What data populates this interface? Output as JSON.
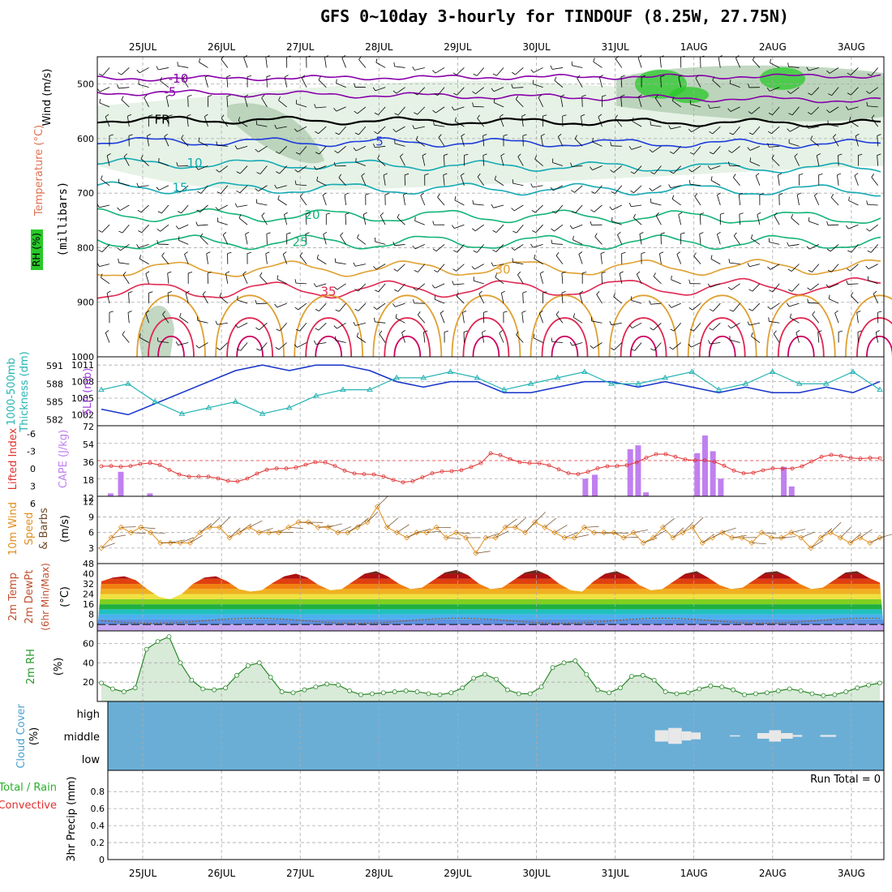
{
  "title": "GFS 0~10day 3-hourly for TINDOUF (8.25W, 27.75N)",
  "colors": {
    "frame": "#000000",
    "grid": "#aaaaaa",
    "temp_cold": "#8800aa",
    "temp_freezing": "#000000",
    "temp_blue": "#1e3cdc",
    "temp_cyan": "#14aab4",
    "temp_green": "#14b478",
    "temp_orange": "#e0a030",
    "temp_hot": "#e02850",
    "rh_light": "#e6f2e6",
    "rh_mid": "#a8c8a8",
    "rh_high": "#28c828",
    "slp": "#1432c8",
    "thickness": "#28b4b4",
    "cape": "#c080f0",
    "lifted_index": "#e03030",
    "wind_speed": "#e09020",
    "wind_barb": "#6b4a2a",
    "rh2m": "#2a8a2a",
    "cloud_bg": "#6aaed6",
    "cloud_fill": "#e8e8e8"
  },
  "dates": [
    "25JUL",
    "26JUL",
    "27JUL",
    "28JUL",
    "29JUL",
    "30JUL",
    "31JUL",
    "1AUG",
    "2AUG",
    "3AUG"
  ],
  "panels": {
    "upper": {
      "label_wind": "Wind (m/s)",
      "label_temp": "Temperature (°C)",
      "label_rh": "RH (%)",
      "label_pressure": "(millibars)",
      "levels": [
        "500",
        "600",
        "700",
        "800",
        "900",
        "1000"
      ],
      "isotherm_labels": [
        "-10",
        "-5",
        "FR",
        "5",
        "10",
        "15",
        "20",
        "25",
        "30",
        "35"
      ]
    },
    "slp": {
      "label_thk": "1000-500mb",
      "label_thk2": "Thickness (dm)",
      "label_slp": "SLP (mb)",
      "thk_ticks": [
        "591",
        "588",
        "585",
        "582"
      ],
      "slp_ticks": [
        "1011",
        "1008",
        "1005",
        "1002"
      ]
    },
    "cape": {
      "label_li": "Lifted Index",
      "label_cape": "CAPE (J/kg)",
      "li_ticks": [
        "-6",
        "-3",
        "0",
        "3",
        "6"
      ],
      "cape_ticks": [
        "72",
        "54",
        "36",
        "18",
        "12"
      ]
    },
    "wind10": {
      "label1": "10m Wind",
      "label2": "Speed",
      "label3": "& Barbs",
      "unit": "(m/s)",
      "ticks": [
        "12",
        "9",
        "6",
        "3"
      ]
    },
    "temp2m": {
      "label1": "2m Temp",
      "label2": "2m DewPt",
      "label3": "(6hr Min/Max)",
      "unit": "(°C)",
      "ticks": [
        "48",
        "40",
        "32",
        "24",
        "16",
        "8",
        "0"
      ]
    },
    "rh2m": {
      "label": "2m RH",
      "unit": "(%)",
      "ticks": [
        "60",
        "40",
        "20"
      ]
    },
    "cloud": {
      "label": "Cloud Cover",
      "unit": "(%)",
      "levels": [
        "high",
        "middle",
        "low"
      ]
    },
    "precip": {
      "label1": "Total / Rain",
      "label2": "Convective",
      "label3": "3hr Precip (mm)",
      "ticks": [
        "0.8",
        "0.6",
        "0.4",
        "0.2",
        "0"
      ],
      "run_total": "Run Total = 0"
    }
  },
  "chart_data": [
    {
      "type": "line",
      "name": "upper",
      "ylabel": "(millibars)",
      "ylim": [
        1000,
        450
      ],
      "isotherms": [
        {
          "label": "-10",
          "p_start": 490,
          "p_end": 485
        },
        {
          "label": "-5",
          "p_start": 515,
          "p_end": 530
        },
        {
          "label": "FR",
          "p_start": 565,
          "p_end": 572
        },
        {
          "label": "5",
          "p_start": 605,
          "p_end": 610
        },
        {
          "label": "10",
          "p_start": 645,
          "p_end": 655
        },
        {
          "label": "15",
          "p_start": 690,
          "p_end": 695
        },
        {
          "label": "20",
          "p_start": 740,
          "p_end": 745
        },
        {
          "label": "25",
          "p_start": 790,
          "p_end": 790
        },
        {
          "label": "30",
          "p_start": 840,
          "p_end": 835
        },
        {
          "label": "35",
          "p_start": 880,
          "p_end": 870
        }
      ]
    },
    {
      "type": "line",
      "name": "slp_thickness",
      "series": [
        {
          "name": "SLP (mb)",
          "values": [
            1003,
            1002,
            1004,
            1006,
            1008,
            1010,
            1011,
            1010,
            1011,
            1011,
            1010,
            1008,
            1007,
            1008,
            1008,
            1006,
            1006,
            1007,
            1008,
            1008,
            1007,
            1008,
            1007,
            1006,
            1007,
            1006,
            1006,
            1007,
            1006,
            1008
          ]
        },
        {
          "name": "1000-500mb Thickness (dm)",
          "values": [
            587,
            588,
            585,
            583,
            584,
            585,
            583,
            584,
            586,
            587,
            587,
            589,
            589,
            590,
            589,
            587,
            588,
            589,
            590,
            588,
            588,
            589,
            590,
            587,
            588,
            590,
            588,
            588,
            590,
            587
          ]
        }
      ]
    },
    {
      "type": "bar",
      "name": "cape_li",
      "cape_bars": [
        {
          "x": 0.05,
          "v": 3
        },
        {
          "x": 0.18,
          "v": 25
        },
        {
          "x": 0.55,
          "v": 3
        },
        {
          "x": 6.08,
          "v": 18
        },
        {
          "x": 6.2,
          "v": 22
        },
        {
          "x": 6.65,
          "v": 48
        },
        {
          "x": 6.75,
          "v": 52
        },
        {
          "x": 6.85,
          "v": 4
        },
        {
          "x": 7.5,
          "v": 44
        },
        {
          "x": 7.6,
          "v": 62
        },
        {
          "x": 7.7,
          "v": 46
        },
        {
          "x": 7.8,
          "v": 18
        },
        {
          "x": 8.6,
          "v": 30
        },
        {
          "x": 8.7,
          "v": 10
        }
      ]
    },
    {
      "type": "line",
      "name": "wind10m",
      "series": [
        {
          "name": "Speed",
          "values": [
            3,
            5,
            7,
            6,
            7,
            6,
            4,
            4,
            4,
            4,
            6,
            7,
            7,
            5,
            6,
            7,
            6,
            6,
            6,
            7,
            8,
            8,
            7,
            7,
            6,
            6,
            7,
            8,
            11,
            7,
            6,
            5,
            6,
            6,
            7,
            5,
            6,
            5,
            2,
            5,
            5,
            7,
            7,
            6,
            8,
            7,
            6,
            5,
            5,
            7,
            6,
            6,
            6,
            5,
            6,
            4,
            5,
            7,
            5,
            6,
            7,
            4,
            5,
            6,
            5,
            5,
            4,
            6,
            5,
            5,
            6,
            5,
            3,
            5,
            6,
            5,
            4,
            5,
            4,
            5
          ]
        }
      ]
    },
    {
      "type": "area",
      "name": "temp2m",
      "ylim": [
        0,
        48
      ],
      "series": [
        {
          "name": "Temp",
          "values": [
            34,
            37,
            38,
            35,
            28,
            22,
            20,
            24,
            32,
            37,
            38,
            34,
            28,
            26,
            27,
            33,
            38,
            40,
            37,
            31,
            27,
            28,
            34,
            40,
            42,
            38,
            32,
            28,
            29,
            35,
            41,
            43,
            39,
            32,
            28,
            29,
            35,
            41,
            43,
            39,
            32,
            27,
            26,
            34,
            40,
            42,
            38,
            31,
            27,
            28,
            34,
            40,
            42,
            37,
            31,
            28,
            29,
            35,
            41,
            42,
            38,
            32,
            28,
            29,
            35,
            41,
            42,
            37,
            33
          ]
        }
      ]
    },
    {
      "type": "line",
      "name": "rh2m",
      "ylim": [
        0,
        70
      ],
      "series": [
        {
          "name": "2m RH",
          "values": [
            19,
            13,
            10,
            14,
            54,
            62,
            67,
            40,
            22,
            13,
            12,
            14,
            27,
            37,
            40,
            25,
            10,
            9,
            12,
            15,
            18,
            17,
            11,
            7,
            8,
            9,
            10,
            11,
            10,
            8,
            7,
            9,
            14,
            24,
            28,
            23,
            12,
            8,
            8,
            15,
            35,
            40,
            42,
            28,
            12,
            9,
            14,
            26,
            27,
            22,
            10,
            8,
            9,
            13,
            16,
            15,
            12,
            7,
            8,
            9,
            11,
            13,
            11,
            8,
            6,
            7,
            10,
            14,
            17,
            19
          ]
        }
      ]
    },
    {
      "type": "bar",
      "name": "cloud",
      "levels": [
        "high",
        "middle",
        "low"
      ],
      "middle_blocks": [
        {
          "x0": 7.0,
          "x1": 7.17,
          "v": 50
        },
        {
          "x0": 7.17,
          "x1": 7.34,
          "v": 70
        },
        {
          "x0": 7.34,
          "x1": 7.46,
          "v": 40
        },
        {
          "x0": 7.46,
          "x1": 7.58,
          "v": 30
        },
        {
          "x0": 7.95,
          "x1": 8.08,
          "v": 5
        },
        {
          "x0": 8.3,
          "x1": 8.45,
          "v": 25
        },
        {
          "x0": 8.45,
          "x1": 8.6,
          "v": 50
        },
        {
          "x0": 8.6,
          "x1": 8.75,
          "v": 25
        },
        {
          "x0": 8.75,
          "x1": 8.87,
          "v": 8
        },
        {
          "x0": 9.1,
          "x1": 9.3,
          "v": 8
        }
      ]
    },
    {
      "type": "bar",
      "name": "precip",
      "ylim": [
        0,
        1
      ],
      "values": []
    }
  ]
}
